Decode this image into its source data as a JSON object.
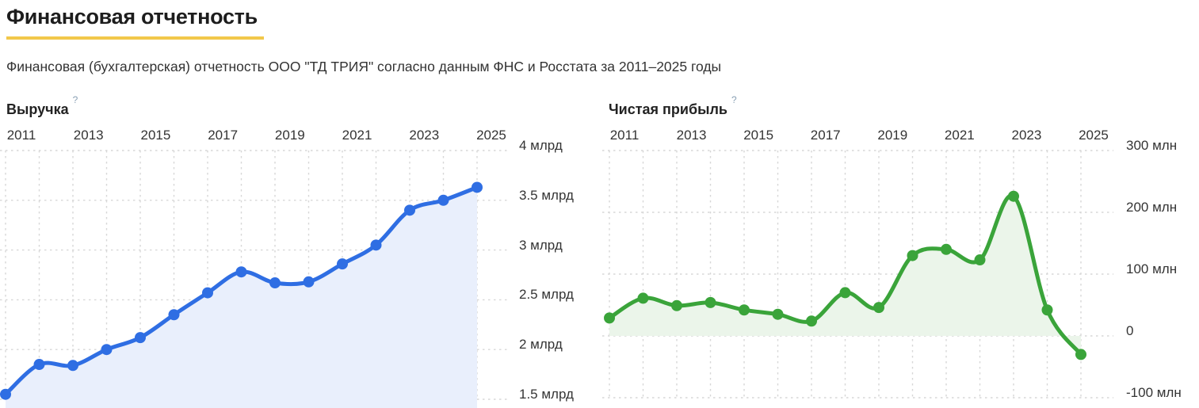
{
  "page": {
    "title": "Финансовая отчетность",
    "subtitle": "Финансовая (бухгалтерская) отчетность ООО \"ТД ТРИЯ\" согласно данным ФНС и Росстата за 2011–2025 годы",
    "accent_underline_color": "#f2c84b"
  },
  "chart_data": [
    {
      "type": "area",
      "title": "Выручка",
      "help_icon": "?",
      "unit": "млрд руб.",
      "x": [
        2011,
        2012,
        2013,
        2014,
        2015,
        2016,
        2017,
        2018,
        2019,
        2020,
        2021,
        2022,
        2023,
        2024,
        2025
      ],
      "values": [
        1.55,
        1.85,
        1.84,
        2.0,
        2.12,
        2.35,
        2.57,
        2.78,
        2.67,
        2.68,
        2.86,
        3.05,
        3.4,
        3.5,
        3.63
      ],
      "x_tick_labels": [
        "2011",
        "2013",
        "2015",
        "2017",
        "2019",
        "2021",
        "2023",
        "2025"
      ],
      "y_ticks": [
        4,
        3.5,
        3,
        2.5,
        2,
        1.5
      ],
      "y_tick_labels": [
        "4 млрд",
        "3.5 млрд",
        "3 млрд",
        "2.5 млрд",
        "2 млрд",
        "1.5 млрд"
      ],
      "ylim": [
        1.37,
        4.04
      ],
      "grid": true,
      "legend": false,
      "line_color": "#2f6ee3",
      "fill_color": "#e9effc",
      "baseline": "bottom"
    },
    {
      "type": "area",
      "title": "Чистая прибыль",
      "help_icon": "?",
      "unit": "млн руб.",
      "x": [
        2011,
        2012,
        2013,
        2014,
        2015,
        2016,
        2017,
        2018,
        2019,
        2020,
        2021,
        2022,
        2023,
        2024,
        2025
      ],
      "values": [
        29,
        61,
        49,
        54,
        42,
        35,
        24,
        70,
        46,
        130,
        140,
        123,
        226,
        42,
        -30
      ],
      "x_tick_labels": [
        "2011",
        "2013",
        "2015",
        "2017",
        "2019",
        "2021",
        "2023",
        "2025"
      ],
      "y_ticks": [
        300,
        200,
        100,
        0,
        -100
      ],
      "y_tick_labels": [
        "300 млн",
        "200 млн",
        "100 млн",
        "0",
        "-100 млн"
      ],
      "ylim": [
        -117,
        306
      ],
      "grid": true,
      "legend": false,
      "line_color": "#3aa43a",
      "fill_color": "#ebf5ea",
      "baseline": 0
    }
  ],
  "grid_color": "#d7d7d7"
}
